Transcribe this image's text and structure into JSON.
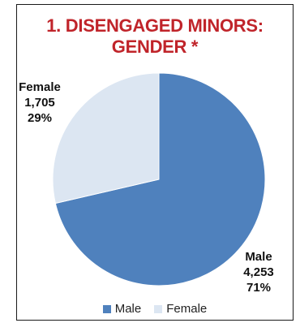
{
  "chart_data": {
    "type": "pie",
    "title_line1": "1. DISENGAGED MINORS:",
    "title_line2": "GENDER *",
    "categories": [
      "Male",
      "Female"
    ],
    "values": [
      4253,
      1705
    ],
    "value_labels": [
      "4,253",
      "1,705"
    ],
    "percent_labels": [
      "71%",
      "29%"
    ],
    "colors": [
      "#4f81bd",
      "#dce6f2"
    ],
    "legend": {
      "placement": "bottom",
      "entries": [
        "Male",
        "Female"
      ]
    }
  }
}
